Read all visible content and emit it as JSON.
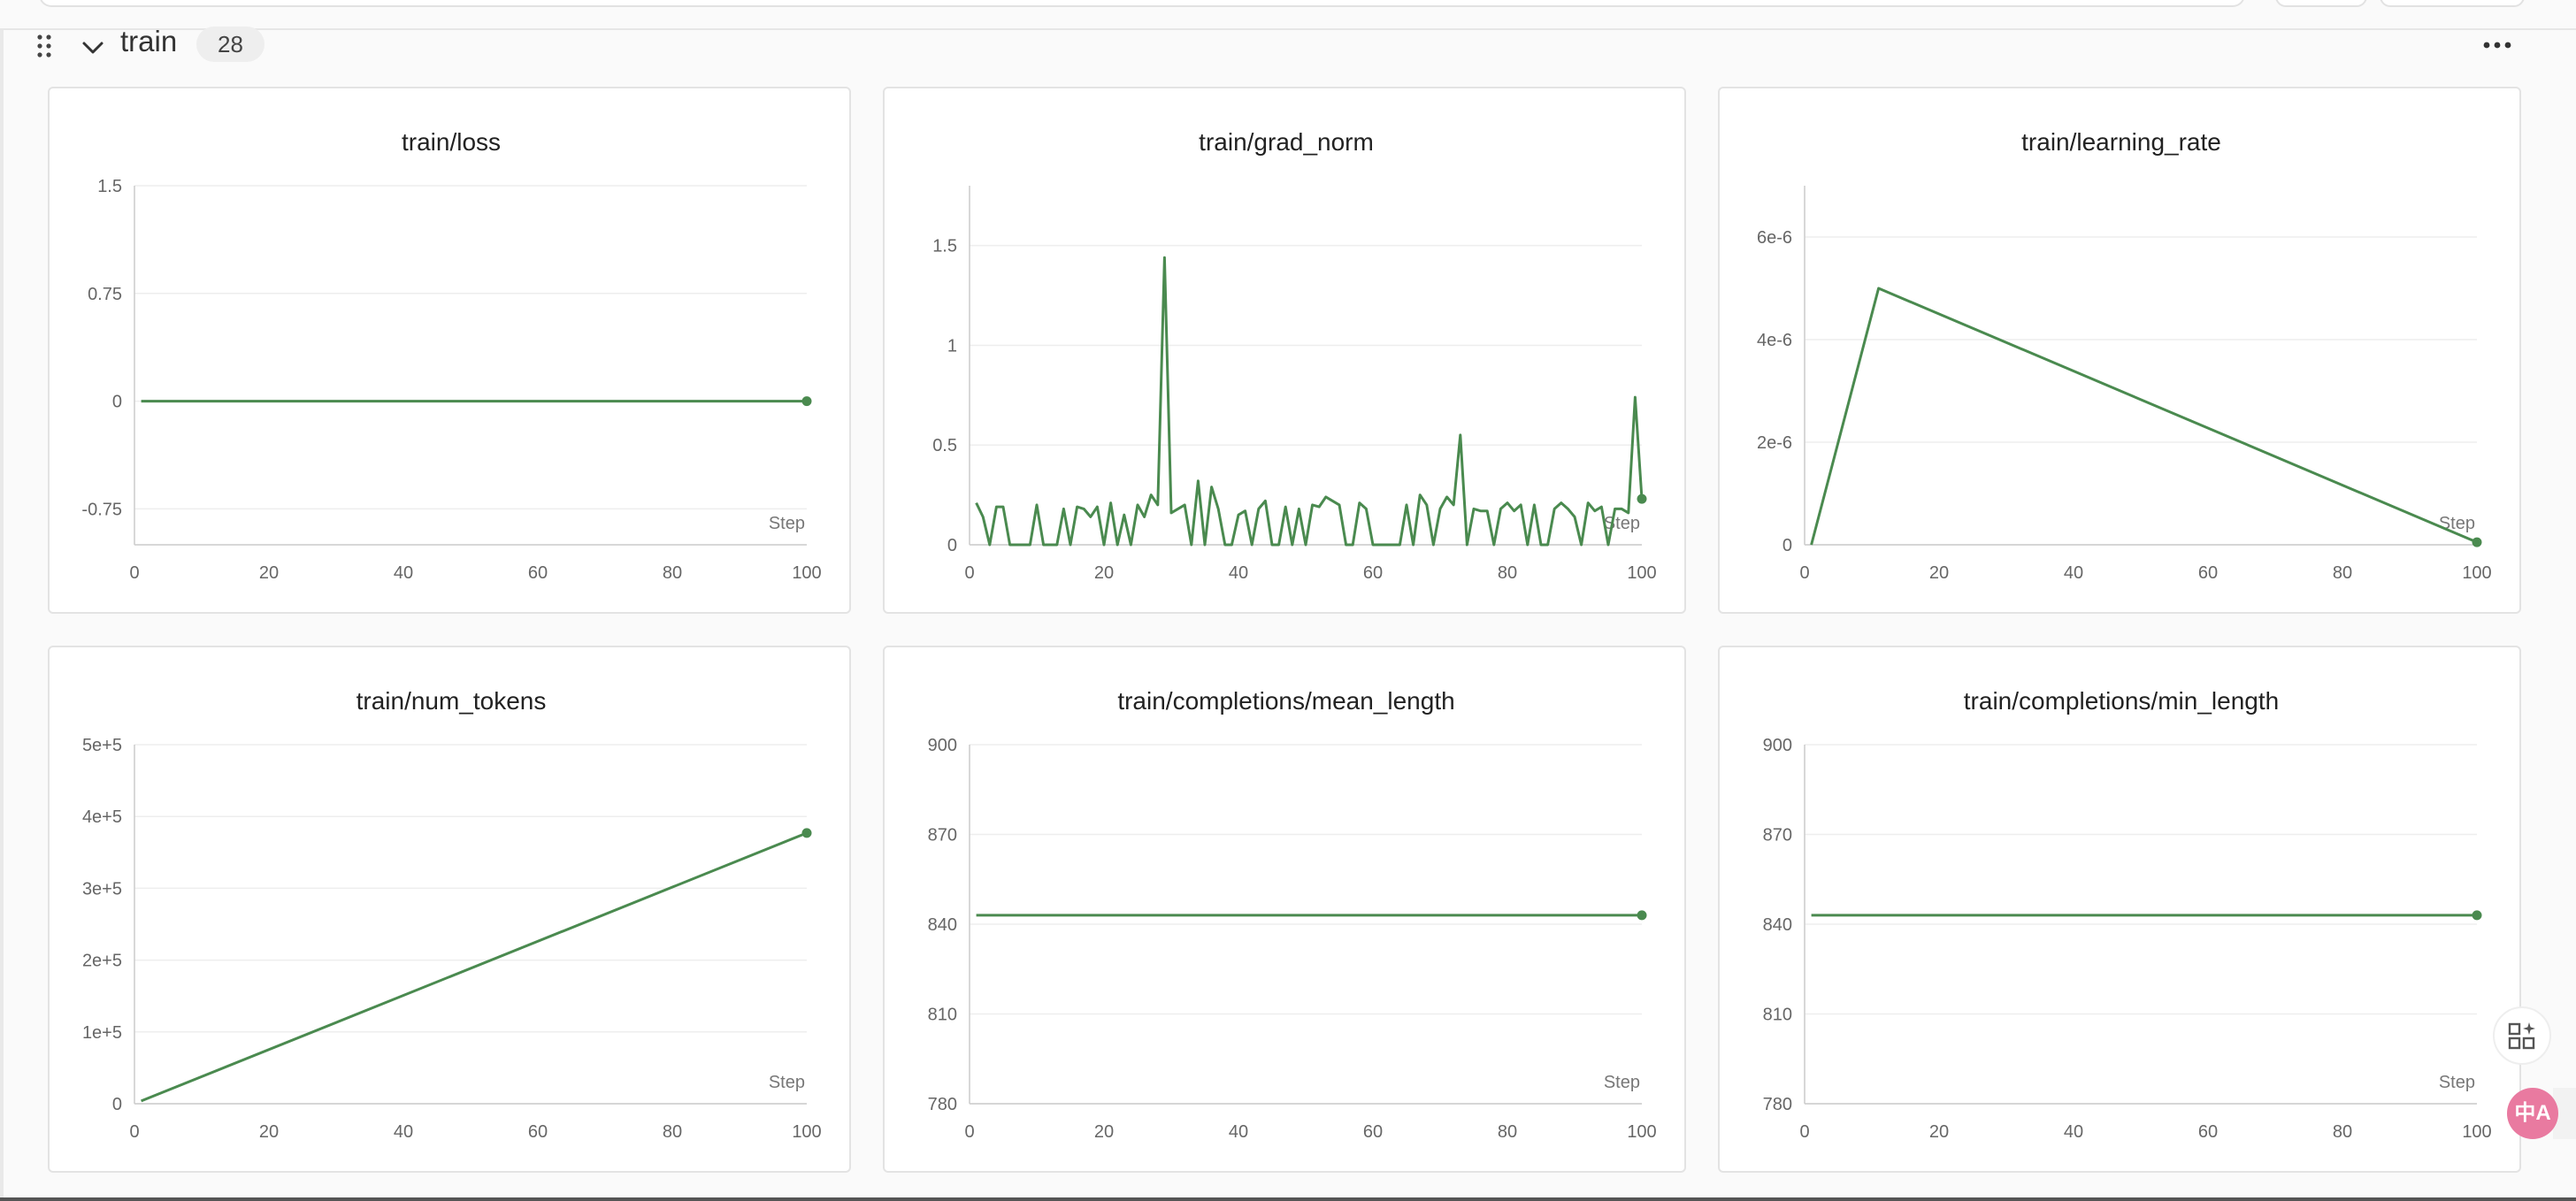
{
  "group": {
    "title": "train",
    "count": "28"
  },
  "floating": {
    "translate_label": "中A"
  },
  "colors": {
    "line": "#4a8a4f",
    "grid": "#eeeeee",
    "axis": "#cccccc"
  },
  "charts": [
    {
      "type": "line",
      "title": "train/loss",
      "xlabel": "Step",
      "xlim": [
        0,
        100
      ],
      "ylim": [
        -1.0,
        1.5
      ],
      "xticks": [
        0,
        20,
        40,
        60,
        80,
        100
      ],
      "xtick_labels": [
        "0",
        "20",
        "40",
        "60",
        "80",
        "100"
      ],
      "yticks": [
        -0.75,
        0,
        0.75,
        1.5
      ],
      "ytick_labels": [
        "-0.75",
        "0",
        "0.75",
        "1.5"
      ],
      "x": [
        1,
        100
      ],
      "y": [
        0,
        0
      ]
    },
    {
      "type": "line",
      "title": "train/grad_norm",
      "xlabel": "Step",
      "xlim": [
        0,
        100
      ],
      "ylim": [
        0,
        1.8
      ],
      "xticks": [
        0,
        20,
        40,
        60,
        80,
        100
      ],
      "xtick_labels": [
        "0",
        "20",
        "40",
        "60",
        "80",
        "100"
      ],
      "yticks": [
        0,
        0.5,
        1,
        1.5
      ],
      "ytick_labels": [
        "0",
        "0.5",
        "1",
        "1.5"
      ],
      "x": [
        1,
        2,
        3,
        4,
        5,
        6,
        7,
        8,
        9,
        10,
        11,
        12,
        13,
        14,
        15,
        16,
        17,
        18,
        19,
        20,
        21,
        22,
        23,
        24,
        25,
        26,
        27,
        28,
        29,
        30,
        31,
        32,
        33,
        34,
        35,
        36,
        37,
        38,
        39,
        40,
        41,
        42,
        43,
        44,
        45,
        46,
        47,
        48,
        49,
        50,
        51,
        52,
        53,
        54,
        55,
        56,
        57,
        58,
        59,
        60,
        61,
        62,
        63,
        64,
        65,
        66,
        67,
        68,
        69,
        70,
        71,
        72,
        73,
        74,
        75,
        76,
        77,
        78,
        79,
        80,
        81,
        82,
        83,
        84,
        85,
        86,
        87,
        88,
        89,
        90,
        91,
        92,
        93,
        94,
        95,
        96,
        97,
        98,
        99,
        100
      ],
      "y": [
        0.21,
        0.14,
        0,
        0.19,
        0.19,
        0,
        0,
        0,
        0,
        0.2,
        0,
        0,
        0,
        0.18,
        0,
        0.19,
        0.18,
        0.14,
        0.19,
        0,
        0.21,
        0,
        0.15,
        0,
        0.2,
        0.14,
        0.25,
        0.2,
        1.44,
        0.16,
        0.18,
        0.2,
        0,
        0.32,
        0,
        0.29,
        0.18,
        0,
        0,
        0.15,
        0.17,
        0,
        0.18,
        0.22,
        0,
        0,
        0.19,
        0,
        0.18,
        0,
        0.2,
        0.19,
        0.24,
        0.22,
        0.2,
        0,
        0,
        0.21,
        0.18,
        0,
        0,
        0,
        0,
        0,
        0.2,
        0,
        0.25,
        0.2,
        0,
        0.18,
        0.24,
        0.2,
        0.55,
        0,
        0.18,
        0.17,
        0.17,
        0,
        0.18,
        0.21,
        0.17,
        0.2,
        0,
        0.2,
        0,
        0,
        0.18,
        0.21,
        0.18,
        0.14,
        0,
        0.21,
        0.17,
        0.19,
        0,
        0.18,
        0.18,
        0.16,
        0.74,
        0.23
      ]
    },
    {
      "type": "line",
      "title": "train/learning_rate",
      "xlabel": "Step",
      "xlim": [
        0,
        100
      ],
      "ylim": [
        0,
        7e-06
      ],
      "xticks": [
        0,
        20,
        40,
        60,
        80,
        100
      ],
      "xtick_labels": [
        "0",
        "20",
        "40",
        "60",
        "80",
        "100"
      ],
      "yticks": [
        0,
        2e-06,
        4e-06,
        6e-06
      ],
      "ytick_labels": [
        "0",
        "2e-6",
        "4e-6",
        "6e-6"
      ],
      "x": [
        1,
        11,
        100
      ],
      "y": [
        0,
        5e-06,
        5e-08
      ]
    },
    {
      "type": "line",
      "title": "train/num_tokens",
      "xlabel": "Step",
      "xlim": [
        0,
        100
      ],
      "ylim": [
        0,
        500000.0
      ],
      "xticks": [
        0,
        20,
        40,
        60,
        80,
        100
      ],
      "xtick_labels": [
        "0",
        "20",
        "40",
        "60",
        "80",
        "100"
      ],
      "yticks": [
        0,
        100000.0,
        200000.0,
        300000.0,
        400000.0,
        500000.0
      ],
      "ytick_labels": [
        "0",
        "1e+5",
        "2e+5",
        "3e+5",
        "4e+5",
        "5e+5"
      ],
      "x": [
        1,
        100
      ],
      "y": [
        3800,
        377000
      ]
    },
    {
      "type": "line",
      "title": "train/completions/mean_length",
      "xlabel": "Step",
      "xlim": [
        0,
        100
      ],
      "ylim": [
        780,
        900
      ],
      "xticks": [
        0,
        20,
        40,
        60,
        80,
        100
      ],
      "xtick_labels": [
        "0",
        "20",
        "40",
        "60",
        "80",
        "100"
      ],
      "yticks": [
        780,
        810,
        840,
        870,
        900
      ],
      "ytick_labels": [
        "780",
        "810",
        "840",
        "870",
        "900"
      ],
      "x": [
        1,
        100
      ],
      "y": [
        843,
        843
      ]
    },
    {
      "type": "line",
      "title": "train/completions/min_length",
      "xlabel": "Step",
      "xlim": [
        0,
        100
      ],
      "ylim": [
        780,
        900
      ],
      "xticks": [
        0,
        20,
        40,
        60,
        80,
        100
      ],
      "xtick_labels": [
        "0",
        "20",
        "40",
        "60",
        "80",
        "100"
      ],
      "yticks": [
        780,
        810,
        840,
        870,
        900
      ],
      "ytick_labels": [
        "780",
        "810",
        "840",
        "870",
        "900"
      ],
      "x": [
        1,
        100
      ],
      "y": [
        843,
        843
      ]
    }
  ]
}
